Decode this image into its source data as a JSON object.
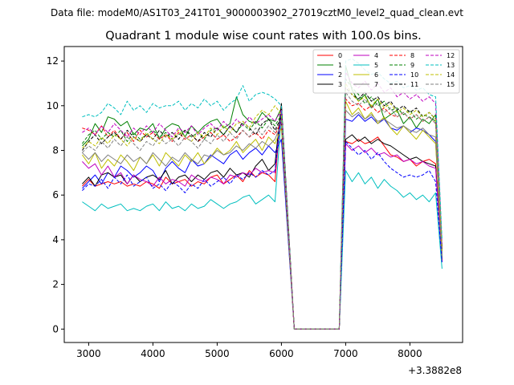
{
  "header": {
    "file_label": "Data file: modeM0/AS1T03_241T01_9000003902_27019cztM0_level2_quad_clean.evt",
    "title": "Quadrant 1 module wise count rates with 100.0s bins."
  },
  "chart_data": {
    "type": "line",
    "title": "Quadrant 1 module wise count rates with 100.0s bins.",
    "xlabel": "",
    "ylabel": "",
    "x_offset_label": "+3.3882e8",
    "xlim": [
      2620,
      8820
    ],
    "ylim": [
      -0.6,
      12.65
    ],
    "xticks": [
      3000,
      4000,
      5000,
      6000,
      7000,
      8000
    ],
    "yticks": [
      0,
      2,
      4,
      6,
      8,
      10,
      12
    ],
    "grid": false,
    "legend": {
      "placement": "top-right",
      "columns": 4
    },
    "x": [
      2900,
      3000,
      3100,
      3200,
      3300,
      3400,
      3500,
      3600,
      3700,
      3800,
      3900,
      4000,
      4100,
      4200,
      4300,
      4400,
      4500,
      4600,
      4700,
      4800,
      4900,
      5000,
      5100,
      5200,
      5300,
      5400,
      5500,
      5600,
      5700,
      5800,
      5900,
      6000,
      6200,
      6300,
      6400,
      6500,
      6600,
      6700,
      6800,
      6900,
      7000,
      7100,
      7200,
      7300,
      7400,
      7500,
      7600,
      7700,
      7800,
      7900,
      8000,
      8100,
      8200,
      8300,
      8400,
      8500
    ],
    "series": [
      {
        "name": "0",
        "color": "#ff0000",
        "dash": "solid",
        "values": [
          6.4,
          6.7,
          6.4,
          6.5,
          6.6,
          6.5,
          6.6,
          6.4,
          6.5,
          6.4,
          6.6,
          6.5,
          6.3,
          6.8,
          6.5,
          6.6,
          6.7,
          6.4,
          6.6,
          6.5,
          6.8,
          6.9,
          6.5,
          6.7,
          6.9,
          6.6,
          7.1,
          6.8,
          7.0,
          6.9,
          6.6,
          10.0,
          0.0,
          0.0,
          0.0,
          0.0,
          0.0,
          0.0,
          0.0,
          0.0,
          8.4,
          8.3,
          8.5,
          8.3,
          8.4,
          8.6,
          8.2,
          7.8,
          7.7,
          7.5,
          7.6,
          7.3,
          7.5,
          7.6,
          7.4,
          3.0
        ]
      },
      {
        "name": "1",
        "color": "#008000",
        "dash": "solid",
        "values": [
          8.2,
          8.5,
          9.2,
          8.8,
          9.5,
          9.4,
          9.1,
          9.3,
          8.7,
          9.0,
          8.9,
          9.2,
          8.5,
          9.0,
          9.2,
          9.1,
          8.6,
          9.1,
          8.8,
          9.1,
          9.3,
          9.4,
          9.0,
          9.2,
          10.4,
          9.6,
          9.3,
          9.2,
          9.7,
          9.4,
          9.3,
          9.9,
          0.0,
          0.0,
          0.0,
          0.0,
          0.0,
          0.0,
          0.0,
          0.0,
          11.8,
          10.7,
          10.2,
          10.5,
          9.9,
          10.3,
          9.4,
          9.6,
          9.8,
          9.2,
          9.5,
          9.0,
          9.4,
          9.2,
          9.6,
          3.5
        ]
      },
      {
        "name": "2",
        "color": "#0000ff",
        "dash": "solid",
        "values": [
          6.3,
          6.6,
          6.9,
          6.5,
          7.0,
          6.8,
          7.3,
          7.1,
          6.8,
          7.0,
          7.3,
          7.1,
          6.6,
          7.2,
          7.5,
          7.2,
          7.0,
          7.6,
          7.3,
          7.4,
          7.8,
          7.6,
          7.4,
          7.8,
          8.0,
          7.6,
          7.9,
          8.1,
          7.8,
          8.2,
          7.9,
          8.5,
          0.0,
          0.0,
          0.0,
          0.0,
          0.0,
          0.0,
          0.0,
          0.0,
          9.4,
          9.3,
          9.6,
          9.3,
          9.5,
          9.2,
          9.4,
          9.0,
          8.9,
          9.1,
          8.8,
          9.0,
          8.9,
          8.7,
          8.4,
          3.2
        ]
      },
      {
        "name": "3",
        "color": "#000000",
        "dash": "solid",
        "values": [
          6.5,
          6.8,
          6.4,
          6.9,
          7.0,
          6.8,
          6.9,
          6.5,
          6.9,
          6.6,
          6.8,
          6.9,
          6.7,
          7.1,
          6.5,
          6.8,
          6.9,
          6.6,
          6.9,
          6.7,
          7.0,
          7.1,
          6.8,
          7.2,
          6.9,
          7.0,
          6.8,
          7.3,
          7.6,
          7.1,
          7.4,
          10.1,
          0.0,
          0.0,
          0.0,
          0.0,
          0.0,
          0.0,
          0.0,
          0.0,
          8.5,
          8.7,
          8.4,
          8.6,
          8.3,
          8.5,
          8.3,
          8.2,
          8.0,
          7.8,
          7.6,
          7.7,
          7.5,
          7.4,
          7.3,
          3.1
        ]
      },
      {
        "name": "4",
        "color": "#bf00bf",
        "dash": "solid",
        "values": [
          7.5,
          7.2,
          7.4,
          6.9,
          7.3,
          6.8,
          7.0,
          6.5,
          6.9,
          6.7,
          6.6,
          6.4,
          6.8,
          6.5,
          6.7,
          6.6,
          6.4,
          6.9,
          6.7,
          6.6,
          6.8,
          6.7,
          6.5,
          6.9,
          6.8,
          7.0,
          6.9,
          7.2,
          7.0,
          7.1,
          7.0,
          9.8,
          0.0,
          0.0,
          0.0,
          0.0,
          0.0,
          0.0,
          0.0,
          0.0,
          8.3,
          8.0,
          8.2,
          7.9,
          8.1,
          7.8,
          7.9,
          7.7,
          7.8,
          7.5,
          7.6,
          7.4,
          7.5,
          7.3,
          7.2,
          3.0
        ]
      },
      {
        "name": "5",
        "color": "#00bfbf",
        "dash": "solid",
        "values": [
          5.7,
          5.5,
          5.3,
          5.6,
          5.4,
          5.5,
          5.6,
          5.3,
          5.4,
          5.3,
          5.5,
          5.6,
          5.3,
          5.7,
          5.4,
          5.5,
          5.3,
          5.6,
          5.4,
          5.5,
          5.8,
          5.6,
          5.4,
          5.6,
          5.7,
          5.9,
          6.0,
          5.6,
          5.8,
          6.0,
          5.7,
          9.6,
          0.0,
          0.0,
          0.0,
          0.0,
          0.0,
          0.0,
          0.0,
          0.0,
          7.1,
          6.6,
          7.0,
          6.5,
          6.8,
          6.3,
          6.7,
          6.4,
          6.2,
          5.9,
          6.1,
          5.8,
          6.0,
          5.7,
          6.1,
          2.7
        ]
      },
      {
        "name": "6",
        "color": "#bfbf00",
        "dash": "solid",
        "values": [
          7.8,
          7.4,
          7.9,
          7.2,
          7.6,
          7.3,
          7.8,
          7.5,
          7.1,
          7.7,
          7.4,
          7.8,
          7.3,
          7.9,
          7.6,
          7.3,
          7.8,
          7.5,
          7.9,
          7.4,
          7.7,
          8.1,
          7.8,
          8.0,
          8.4,
          7.9,
          8.2,
          8.5,
          8.0,
          8.6,
          8.3,
          9.0,
          0.0,
          0.0,
          0.0,
          0.0,
          0.0,
          0.0,
          0.0,
          0.0,
          10.2,
          9.6,
          9.9,
          9.4,
          9.7,
          9.2,
          9.5,
          9.0,
          8.7,
          9.1,
          8.8,
          8.5,
          8.9,
          8.6,
          8.3,
          3.2
        ]
      },
      {
        "name": "7",
        "color": "#808080",
        "dash": "solid",
        "values": [
          7.9,
          7.6,
          7.9,
          7.5,
          7.8,
          7.6,
          7.4,
          7.8,
          7.5,
          7.7,
          7.4,
          7.9,
          7.6,
          7.3,
          7.7,
          7.5,
          7.9,
          7.6,
          7.4,
          7.8,
          7.7,
          8.0,
          7.8,
          7.9,
          8.2,
          8.0,
          8.3,
          8.1,
          8.4,
          8.2,
          8.5,
          9.2,
          0.0,
          0.0,
          0.0,
          0.0,
          0.0,
          0.0,
          0.0,
          0.0,
          9.8,
          9.5,
          9.7,
          9.4,
          9.6,
          9.3,
          9.4,
          9.2,
          9.0,
          9.1,
          8.9,
          8.8,
          9.0,
          8.7,
          8.6,
          3.3
        ]
      },
      {
        "name": "8",
        "color": "#ff0000",
        "dash": "dashed",
        "values": [
          9.0,
          8.9,
          8.7,
          9.1,
          8.6,
          8.9,
          8.5,
          8.8,
          8.4,
          8.9,
          8.6,
          8.8,
          8.5,
          8.7,
          8.4,
          8.8,
          8.5,
          8.7,
          8.4,
          8.6,
          8.8,
          8.5,
          8.7,
          8.4,
          8.6,
          8.9,
          8.6,
          8.8,
          8.5,
          8.9,
          8.7,
          9.3,
          0.0,
          0.0,
          0.0,
          0.0,
          0.0,
          0.0,
          0.0,
          0.0,
          10.3,
          10.0,
          10.1,
          9.8,
          10.0,
          9.7,
          9.9,
          9.6,
          9.5,
          9.7,
          9.4,
          9.6,
          9.3,
          9.5,
          9.2,
          3.6
        ]
      },
      {
        "name": "9",
        "color": "#008000",
        "dash": "dashed",
        "values": [
          8.3,
          8.7,
          8.9,
          8.5,
          8.8,
          8.6,
          8.9,
          8.4,
          8.8,
          8.5,
          8.7,
          8.9,
          8.6,
          8.8,
          8.5,
          8.7,
          8.9,
          8.6,
          8.8,
          8.5,
          8.9,
          9.0,
          8.7,
          9.1,
          8.8,
          9.2,
          8.9,
          9.3,
          9.0,
          9.4,
          9.1,
          9.6,
          0.0,
          0.0,
          0.0,
          0.0,
          0.0,
          0.0,
          0.0,
          0.0,
          11.2,
          10.8,
          10.5,
          10.1,
          10.4,
          10.0,
          10.2,
          9.8,
          9.9,
          9.6,
          9.8,
          9.4,
          9.6,
          9.5,
          9.3,
          3.7
        ]
      },
      {
        "name": "10",
        "color": "#0000ff",
        "dash": "dashed",
        "values": [
          6.2,
          6.5,
          6.4,
          6.7,
          6.3,
          6.8,
          6.5,
          6.9,
          6.4,
          6.6,
          6.8,
          6.3,
          6.5,
          6.2,
          6.6,
          6.4,
          6.1,
          6.5,
          6.3,
          6.7,
          6.4,
          6.6,
          6.8,
          6.5,
          6.9,
          6.7,
          7.0,
          6.8,
          7.1,
          6.9,
          7.1,
          9.7,
          0.0,
          0.0,
          0.0,
          0.0,
          0.0,
          0.0,
          0.0,
          0.0,
          8.4,
          8.1,
          7.8,
          8.0,
          7.6,
          7.9,
          7.5,
          7.2,
          7.0,
          6.8,
          6.9,
          6.8,
          6.9,
          7.1,
          6.6,
          3.0
        ]
      },
      {
        "name": "11",
        "color": "#000000",
        "dash": "dashed",
        "values": [
          8.0,
          8.4,
          8.7,
          8.3,
          8.6,
          8.8,
          8.5,
          8.9,
          8.6,
          8.4,
          8.7,
          8.5,
          8.9,
          8.6,
          8.8,
          8.5,
          8.9,
          8.7,
          8.4,
          8.8,
          8.6,
          9.0,
          8.7,
          9.1,
          8.8,
          9.3,
          9.0,
          8.7,
          9.2,
          9.4,
          8.9,
          9.5,
          0.0,
          0.0,
          0.0,
          0.0,
          0.0,
          0.0,
          0.0,
          0.0,
          10.8,
          10.5,
          10.3,
          10.6,
          10.2,
          10.4,
          10.0,
          10.2,
          9.8,
          10.0,
          9.7,
          9.9,
          9.5,
          9.7,
          9.4,
          3.6
        ]
      },
      {
        "name": "12",
        "color": "#bf00bf",
        "dash": "dashed",
        "values": [
          8.8,
          9.0,
          8.7,
          9.1,
          8.8,
          9.2,
          8.9,
          8.6,
          9.0,
          8.7,
          9.1,
          8.8,
          9.2,
          8.9,
          8.6,
          9.0,
          8.8,
          9.1,
          8.7,
          9.0,
          9.2,
          8.9,
          9.3,
          9.0,
          9.4,
          9.1,
          9.5,
          9.2,
          9.4,
          9.6,
          9.3,
          9.8,
          0.0,
          0.0,
          0.0,
          0.0,
          0.0,
          0.0,
          0.0,
          0.0,
          11.5,
          11.0,
          10.8,
          11.1,
          10.7,
          11.0,
          10.6,
          10.8,
          10.4,
          10.6,
          10.3,
          10.5,
          10.2,
          10.4,
          10.1,
          3.8
        ]
      },
      {
        "name": "13",
        "color": "#00bfbf",
        "dash": "dashed",
        "values": [
          9.5,
          9.6,
          9.5,
          9.7,
          10.1,
          9.9,
          9.6,
          10.2,
          9.8,
          10.0,
          9.7,
          10.1,
          9.9,
          10.0,
          10.0,
          10.2,
          9.8,
          10.1,
          9.9,
          10.3,
          10.0,
          10.2,
          9.8,
          10.1,
          10.3,
          10.9,
          10.2,
          10.5,
          10.6,
          10.5,
          10.3,
          10.0,
          0.0,
          0.0,
          0.0,
          0.0,
          0.0,
          0.0,
          0.0,
          0.0,
          12.0,
          12.1,
          11.9,
          11.6,
          11.4,
          11.5,
          11.2,
          11.0,
          11.1,
          10.8,
          10.9,
          10.7,
          10.8,
          10.5,
          10.4,
          4.0
        ]
      },
      {
        "name": "14",
        "color": "#bfbf00",
        "dash": "dashed",
        "values": [
          8.1,
          8.4,
          8.2,
          8.6,
          8.3,
          8.7,
          8.5,
          8.2,
          8.6,
          8.4,
          8.8,
          8.5,
          8.3,
          8.7,
          8.5,
          8.9,
          8.6,
          8.4,
          8.8,
          8.6,
          9.0,
          8.7,
          9.1,
          8.8,
          9.2,
          9.3,
          9.0,
          9.5,
          9.8,
          9.6,
          10.0,
          9.6,
          0.0,
          0.0,
          0.0,
          0.0,
          0.0,
          0.0,
          0.0,
          0.0,
          11.0,
          10.5,
          10.2,
          10.4,
          10.0,
          10.3,
          9.9,
          10.1,
          9.7,
          9.9,
          9.6,
          9.8,
          9.5,
          9.7,
          9.4,
          3.5
        ]
      },
      {
        "name": "15",
        "color": "#808080",
        "dash": "dashed",
        "values": [
          7.9,
          8.2,
          8.0,
          8.4,
          8.1,
          8.5,
          8.2,
          8.6,
          8.3,
          8.0,
          8.4,
          8.2,
          8.6,
          8.3,
          8.5,
          8.2,
          8.6,
          8.4,
          8.1,
          8.5,
          8.3,
          8.7,
          8.4,
          8.8,
          8.5,
          8.9,
          8.6,
          9.0,
          8.7,
          9.1,
          8.8,
          9.4,
          0.0,
          0.0,
          0.0,
          0.0,
          0.0,
          0.0,
          0.0,
          0.0,
          10.6,
          10.2,
          10.0,
          10.3,
          9.9,
          10.1,
          9.7,
          9.9,
          9.5,
          9.7,
          9.4,
          9.6,
          9.3,
          9.5,
          9.2,
          3.4
        ]
      }
    ]
  }
}
